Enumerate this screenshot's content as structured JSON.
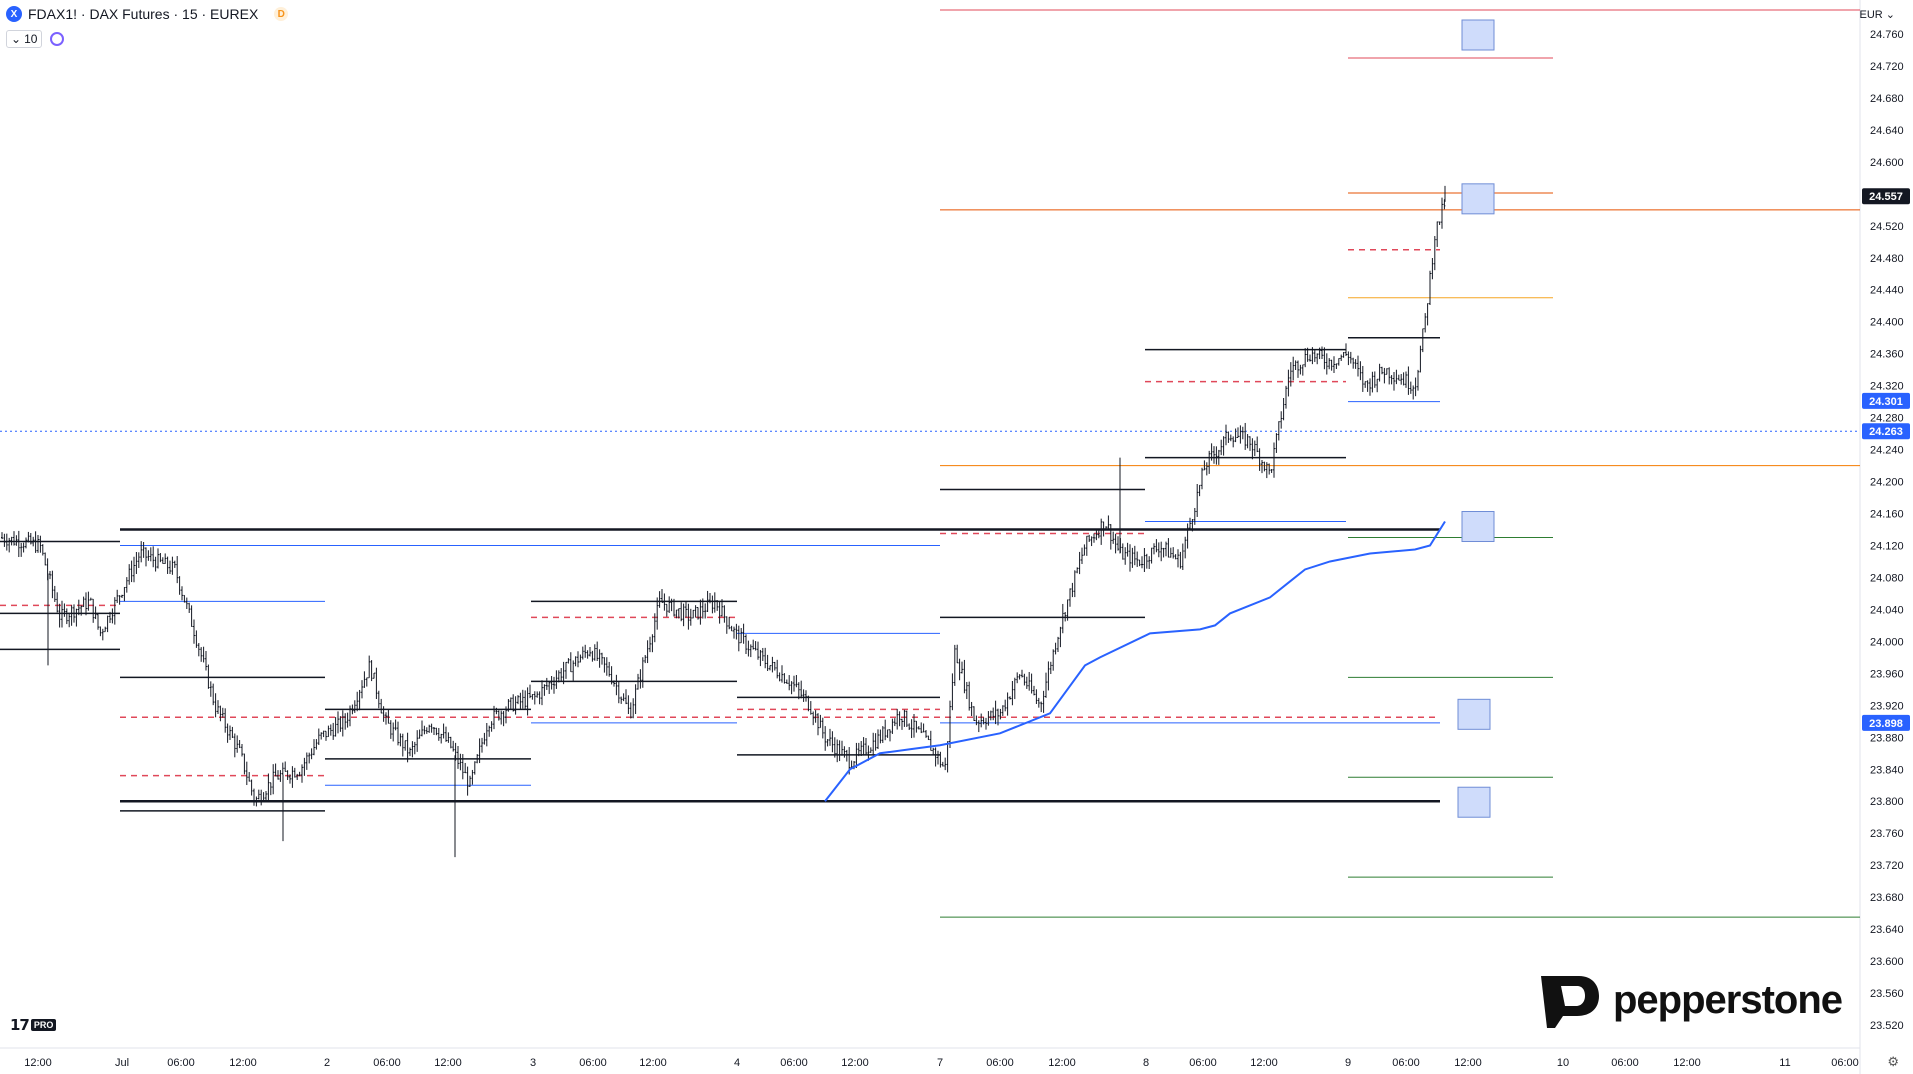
{
  "header": {
    "symbol_icon": "X",
    "title": "FDAX1! · DAX Futures · 15 · EUREX",
    "d_badge": "D",
    "indicator_value": "10",
    "currency": "EUR"
  },
  "logos": {
    "tv": "17",
    "pro": "PRO",
    "pepperstone": "pepperstone"
  },
  "colors": {
    "price_line_blue": "#2962ff",
    "resistance_red": "#e0485a",
    "support_green": "#2e7d32",
    "orange": "#f57c00"
  },
  "chart_data": {
    "type": "candlestick",
    "yaxis_labels": [
      "24.760",
      "24.720",
      "24.680",
      "24.640",
      "24.600",
      "24.520",
      "24.480",
      "24.440",
      "24.400",
      "24.360",
      "24.320",
      "24.280",
      "24.240",
      "24.200",
      "24.160",
      "24.120",
      "24.080",
      "24.040",
      "24.000",
      "23.960",
      "23.920",
      "23.880",
      "23.840",
      "23.800",
      "23.760",
      "23.720",
      "23.680",
      "23.640",
      "23.600",
      "23.560",
      "23.520"
    ],
    "xaxis_labels": [
      "12:00",
      "Jul",
      "06:00",
      "12:00",
      "2",
      "06:00",
      "12:00",
      "3",
      "06:00",
      "12:00",
      "4",
      "06:00",
      "12:00",
      "7",
      "06:00",
      "12:00",
      "8",
      "06:00",
      "12:00",
      "9",
      "06:00",
      "12:00",
      "10",
      "06:00",
      "12:00",
      "11",
      "06:00"
    ],
    "price_badges": [
      {
        "label": "24.557",
        "style": "dark"
      },
      {
        "label": "24.301",
        "style": "blue"
      },
      {
        "label": "24.263",
        "style": "blue"
      },
      {
        "label": "23.898",
        "style": "blue"
      }
    ],
    "ylim": [
      23.5,
      24.79
    ],
    "last_price": 24.557
  }
}
